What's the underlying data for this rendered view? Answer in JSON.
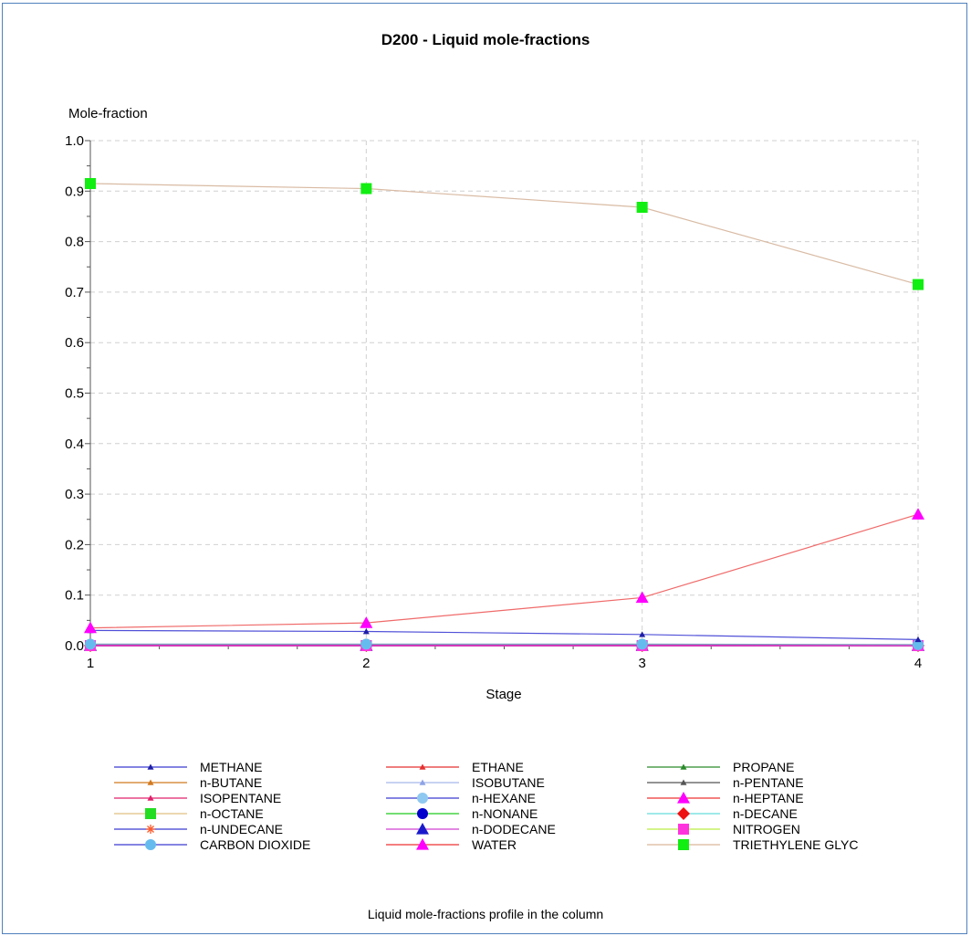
{
  "chart_data": {
    "type": "line",
    "title": "D200 - Liquid mole-fractions",
    "ylabel": "Mole-fraction",
    "xlabel": "Stage",
    "caption": "Liquid mole-fractions profile in the column",
    "x": [
      1,
      2,
      3,
      4
    ],
    "xlim": [
      1,
      4
    ],
    "ylim": [
      0,
      1
    ],
    "y_ticks": [
      "0.0",
      "0.1",
      "0.2",
      "0.3",
      "0.4",
      "0.5",
      "0.6",
      "0.7",
      "0.8",
      "0.9",
      "1.0"
    ],
    "x_ticks": [
      "1",
      "2",
      "3",
      "4"
    ],
    "grid": true,
    "legend_position": "bottom",
    "series": [
      {
        "name": "METHANE",
        "color": "#1f1fa8",
        "marker": "triangle-small",
        "values": [
          0.03,
          0.028,
          0.022,
          0.012
        ]
      },
      {
        "name": "ETHANE",
        "color": "#e53030",
        "marker": "triangle-small",
        "values": [
          0.0,
          0.0,
          0.0,
          0.0
        ]
      },
      {
        "name": "PROPANE",
        "color": "#2a8a2a",
        "marker": "triangle-small",
        "values": [
          0.0,
          0.0,
          0.0,
          0.0
        ]
      },
      {
        "name": "n-BUTANE",
        "color": "#d27a1e",
        "marker": "triangle-small",
        "values": [
          0.0,
          0.0,
          0.0,
          0.0
        ]
      },
      {
        "name": "ISOBUTANE",
        "color": "#8ea3e6",
        "marker": "triangle-small",
        "values": [
          0.0,
          0.0,
          0.0,
          0.0
        ]
      },
      {
        "name": "n-PENTANE",
        "color": "#555555",
        "marker": "triangle-small",
        "values": [
          0.0,
          0.0,
          0.0,
          0.0
        ]
      },
      {
        "name": "ISOPENTANE",
        "color": "#e0206a",
        "marker": "triangle-small",
        "values": [
          0.0,
          0.0,
          0.0,
          0.0
        ]
      },
      {
        "name": "n-HEXANE",
        "color": "#8fc8f0",
        "marker": "circle",
        "values": [
          0.0,
          0.0,
          0.0,
          0.0
        ]
      },
      {
        "name": "n-HEPTANE",
        "color": "#ff00ff",
        "marker": "triangle",
        "values": [
          0.0,
          0.0,
          0.0,
          0.0
        ]
      },
      {
        "name": "n-OCTANE",
        "color": "#22dd22",
        "marker": "square",
        "values": [
          0.0,
          0.0,
          0.0,
          0.0
        ]
      },
      {
        "name": "n-NONANE",
        "color": "#0000cc",
        "marker": "circle",
        "values": [
          0.0,
          0.0,
          0.0,
          0.0
        ]
      },
      {
        "name": "n-DECANE",
        "color": "#ee1111",
        "marker": "diamond",
        "values": [
          0.0,
          0.0,
          0.0,
          0.0
        ]
      },
      {
        "name": "n-UNDECANE",
        "color": "#ff5a2a",
        "marker": "star",
        "values": [
          0.0,
          0.0,
          0.0,
          0.0
        ]
      },
      {
        "name": "n-DODECANE",
        "color": "#1a1acc",
        "marker": "triangle",
        "values": [
          0.0,
          0.0,
          0.0,
          0.0
        ]
      },
      {
        "name": "NITROGEN",
        "color": "#ff33dd",
        "marker": "square",
        "values": [
          0.0,
          0.0,
          0.0,
          0.0
        ]
      },
      {
        "name": "CARBON DIOXIDE",
        "color": "#66bbee",
        "marker": "circle",
        "values": [
          0.003,
          0.003,
          0.003,
          0.002
        ]
      },
      {
        "name": "WATER",
        "color": "#ff00ff",
        "marker": "triangle",
        "values": [
          0.035,
          0.045,
          0.095,
          0.26
        ]
      },
      {
        "name": "TRIETHYLENE GLYC",
        "color": "#11ee11",
        "marker": "square",
        "values": [
          0.915,
          0.905,
          0.868,
          0.715
        ]
      }
    ],
    "legend_line_colors": {
      "METHANE": "#3b3bd0",
      "ETHANE": "#e53030",
      "PROPANE": "#2a8a2a",
      "n-BUTANE": "#d27a1e",
      "ISOBUTANE": "#a7b6ec",
      "n-PENTANE": "#555555",
      "ISOPENTANE": "#e0206a",
      "n-HEXANE": "#3b3bd0",
      "n-HEPTANE": "#ee3333",
      "n-OCTANE": "#e0c080",
      "n-NONANE": "#22cc22",
      "n-DECANE": "#66dddd",
      "n-UNDECANE": "#3b3bd0",
      "n-DODECANE": "#d040d0",
      "NITROGEN": "#bbee44",
      "CARBON DIOXIDE": "#3b3bd0",
      "WATER": "#ee3333",
      "TRIETHYLENE GLYC": "#d9b79a"
    },
    "plot_line_colors": {
      "METHANE": "#5050d8",
      "WATER": "#f06a6a",
      "TRIETHYLENE GLYC": "#d9bba4",
      "CARBON DIOXIDE": "#7fa0c0"
    }
  }
}
